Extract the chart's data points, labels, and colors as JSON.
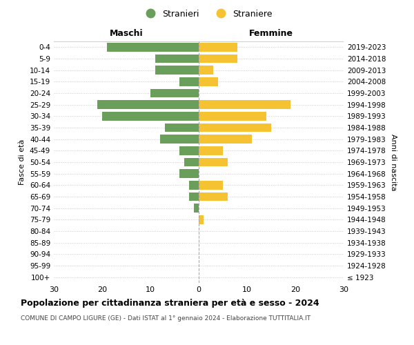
{
  "age_groups": [
    "100+",
    "95-99",
    "90-94",
    "85-89",
    "80-84",
    "75-79",
    "70-74",
    "65-69",
    "60-64",
    "55-59",
    "50-54",
    "45-49",
    "40-44",
    "35-39",
    "30-34",
    "25-29",
    "20-24",
    "15-19",
    "10-14",
    "5-9",
    "0-4"
  ],
  "birth_years": [
    "≤ 1923",
    "1924-1928",
    "1929-1933",
    "1934-1938",
    "1939-1943",
    "1944-1948",
    "1949-1953",
    "1954-1958",
    "1959-1963",
    "1964-1968",
    "1969-1973",
    "1974-1978",
    "1979-1983",
    "1984-1988",
    "1989-1993",
    "1994-1998",
    "1999-2003",
    "2004-2008",
    "2009-2013",
    "2014-2018",
    "2019-2023"
  ],
  "males": [
    0,
    0,
    0,
    0,
    0,
    0,
    1,
    2,
    2,
    4,
    3,
    4,
    8,
    7,
    20,
    21,
    10,
    4,
    9,
    9,
    19
  ],
  "females": [
    0,
    0,
    0,
    0,
    0,
    1,
    0,
    6,
    5,
    0,
    6,
    5,
    11,
    15,
    14,
    19,
    0,
    4,
    3,
    8,
    8
  ],
  "male_color": "#6a9e5b",
  "female_color": "#f5c231",
  "title": "Popolazione per cittadinanza straniera per età e sesso - 2024",
  "subtitle": "COMUNE DI CAMPO LIGURE (GE) - Dati ISTAT al 1° gennaio 2024 - Elaborazione TUTTITALIA.IT",
  "ylabel_left": "Fasce di età",
  "ylabel_right": "Anni di nascita",
  "xlabel_left": "Maschi",
  "xlabel_right": "Femmine",
  "legend_males": "Stranieri",
  "legend_females": "Straniere",
  "xlim": 30,
  "background_color": "#ffffff",
  "grid_color": "#cccccc"
}
